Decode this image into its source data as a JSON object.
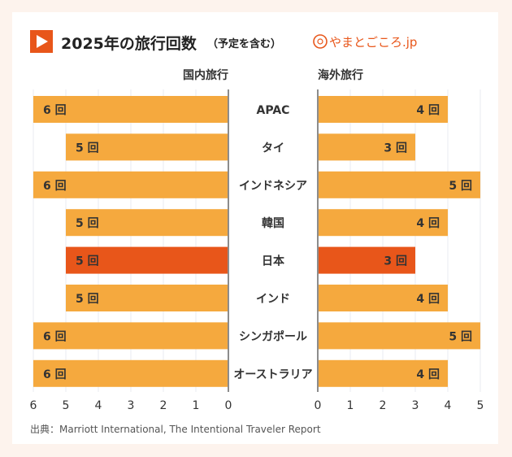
{
  "header": {
    "title": "2025年の旅行回数",
    "title_note": "（予定を含む）",
    "logo_text": "やまとごころ.jp"
  },
  "colors": {
    "bar": "#f5a93e",
    "highlight": "#e8561a",
    "accent": "#e8561a",
    "text": "#333333"
  },
  "source": "出典：Marriott International, The Intentional Traveler Report",
  "chart_data": {
    "type": "bar",
    "orientation": "horizontal-butterfly",
    "categories": [
      "APAC",
      "タイ",
      "インドネシア",
      "韓国",
      "日本",
      "インド",
      "シンガポール",
      "オーストラリア"
    ],
    "unit": "回",
    "highlight": "日本",
    "grid": true,
    "series": [
      {
        "name": "国内旅行",
        "values": [
          6,
          5,
          6,
          5,
          5,
          5,
          6,
          6
        ],
        "xlim": [
          0,
          6
        ],
        "ticks": [
          "6",
          "5",
          "4",
          "3",
          "2",
          "1",
          "0"
        ],
        "direction": "leftward"
      },
      {
        "name": "海外旅行",
        "values": [
          4,
          3,
          5,
          4,
          3,
          4,
          5,
          4
        ],
        "xlim": [
          0,
          5
        ],
        "ticks": [
          "0",
          "1",
          "2",
          "3",
          "4",
          "5"
        ],
        "direction": "rightward"
      }
    ]
  }
}
